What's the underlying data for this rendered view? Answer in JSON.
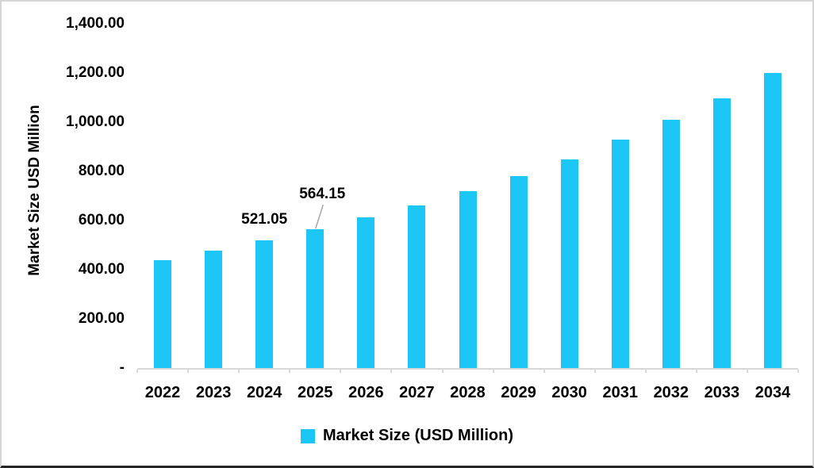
{
  "chart_data": {
    "type": "bar",
    "title": "",
    "xlabel": "",
    "ylabel": "Market Size USD Million",
    "categories": [
      "2022",
      "2023",
      "2024",
      "2025",
      "2026",
      "2027",
      "2028",
      "2029",
      "2030",
      "2031",
      "2032",
      "2033",
      "2034"
    ],
    "values": [
      440,
      478,
      521.05,
      564.15,
      613,
      663,
      721,
      782,
      849,
      928,
      1009,
      1098,
      1199
    ],
    "ylim": [
      0,
      1400
    ],
    "ytick_step": 200,
    "yticks": [
      {
        "value": 0,
        "label": "-"
      },
      {
        "value": 200,
        "label": "200.00"
      },
      {
        "value": 400,
        "label": "400.00"
      },
      {
        "value": 600,
        "label": "600.00"
      },
      {
        "value": 800,
        "label": "800.00"
      },
      {
        "value": 1000,
        "label": "1,000.00"
      },
      {
        "value": 1200,
        "label": "1,200.00"
      },
      {
        "value": 1400,
        "label": "1,400.00"
      }
    ],
    "grid": false,
    "legend_position": "bottom",
    "annotations": [
      {
        "category": "2024",
        "text": "521.05",
        "callout": false
      },
      {
        "category": "2025",
        "text": "564.15",
        "callout": true
      }
    ],
    "colors": {
      "bar": "#1cc7f6",
      "axis_line": "#d9d9d9",
      "leader_line": "#a6a6a6",
      "text": "#000000"
    }
  },
  "legend": {
    "label": "Market Size (USD Million)"
  }
}
